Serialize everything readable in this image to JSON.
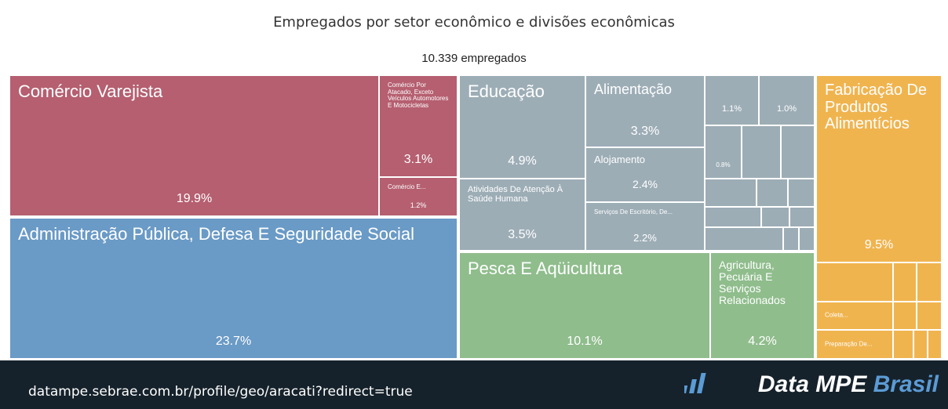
{
  "chart_data": {
    "type": "treemap",
    "title": "Empregados por setor econômico e divisões econômicas",
    "subtitle": "10.339 empregados",
    "categories": [
      "Comércio Varejista",
      "Comércio Por Atacado, Exceto Veículos Automotores E Motocicletas",
      "Comércio E...",
      "Administração Pública, Defesa E Seguridade Social",
      "Educação",
      "Atividades De Atenção À Saúde Humana",
      "Alimentação",
      "Alojamento",
      "Serviços De Escritório, De...",
      "Pesca E Aqüicultura",
      "Agricultura, Pecuária E Serviços Relacionados",
      "Fabricação De Produtos Alimentícios",
      "Coleta...",
      "Preparação De...",
      null,
      null,
      null
    ],
    "values": [
      19.9,
      3.1,
      1.2,
      23.7,
      4.9,
      3.5,
      3.3,
      2.4,
      2.2,
      10.1,
      4.2,
      9.5,
      null,
      null,
      1.1,
      1.0,
      0.8
    ],
    "value_labels": [
      "19.9%",
      "3.1%",
      "1.2%",
      "23.7%",
      "4.9%",
      "3.5%",
      "3.3%",
      "2.4%",
      "2.2%",
      "10.1%",
      "4.2%",
      "9.5%",
      null,
      null,
      "1.1%",
      "1.0%",
      "0.8%"
    ],
    "colors": [
      "#b55f70",
      "#b55f70",
      "#b55f70",
      "#6a9ac6",
      "#9dadb6",
      "#9dadb6",
      "#9dadb6",
      "#9dadb6",
      "#9dadb6",
      "#8fbd8c",
      "#8fbd8c",
      "#f0b44f",
      "#f0b44f",
      "#f0b44f",
      "#9dadb6",
      "#9dadb6",
      "#9dadb6"
    ]
  },
  "footer": {
    "url": "datampe.sebrae.com.br/profile/geo/aracati?redirect=true",
    "logo_main": "Data MPE",
    "logo_accent": "Brasil"
  }
}
